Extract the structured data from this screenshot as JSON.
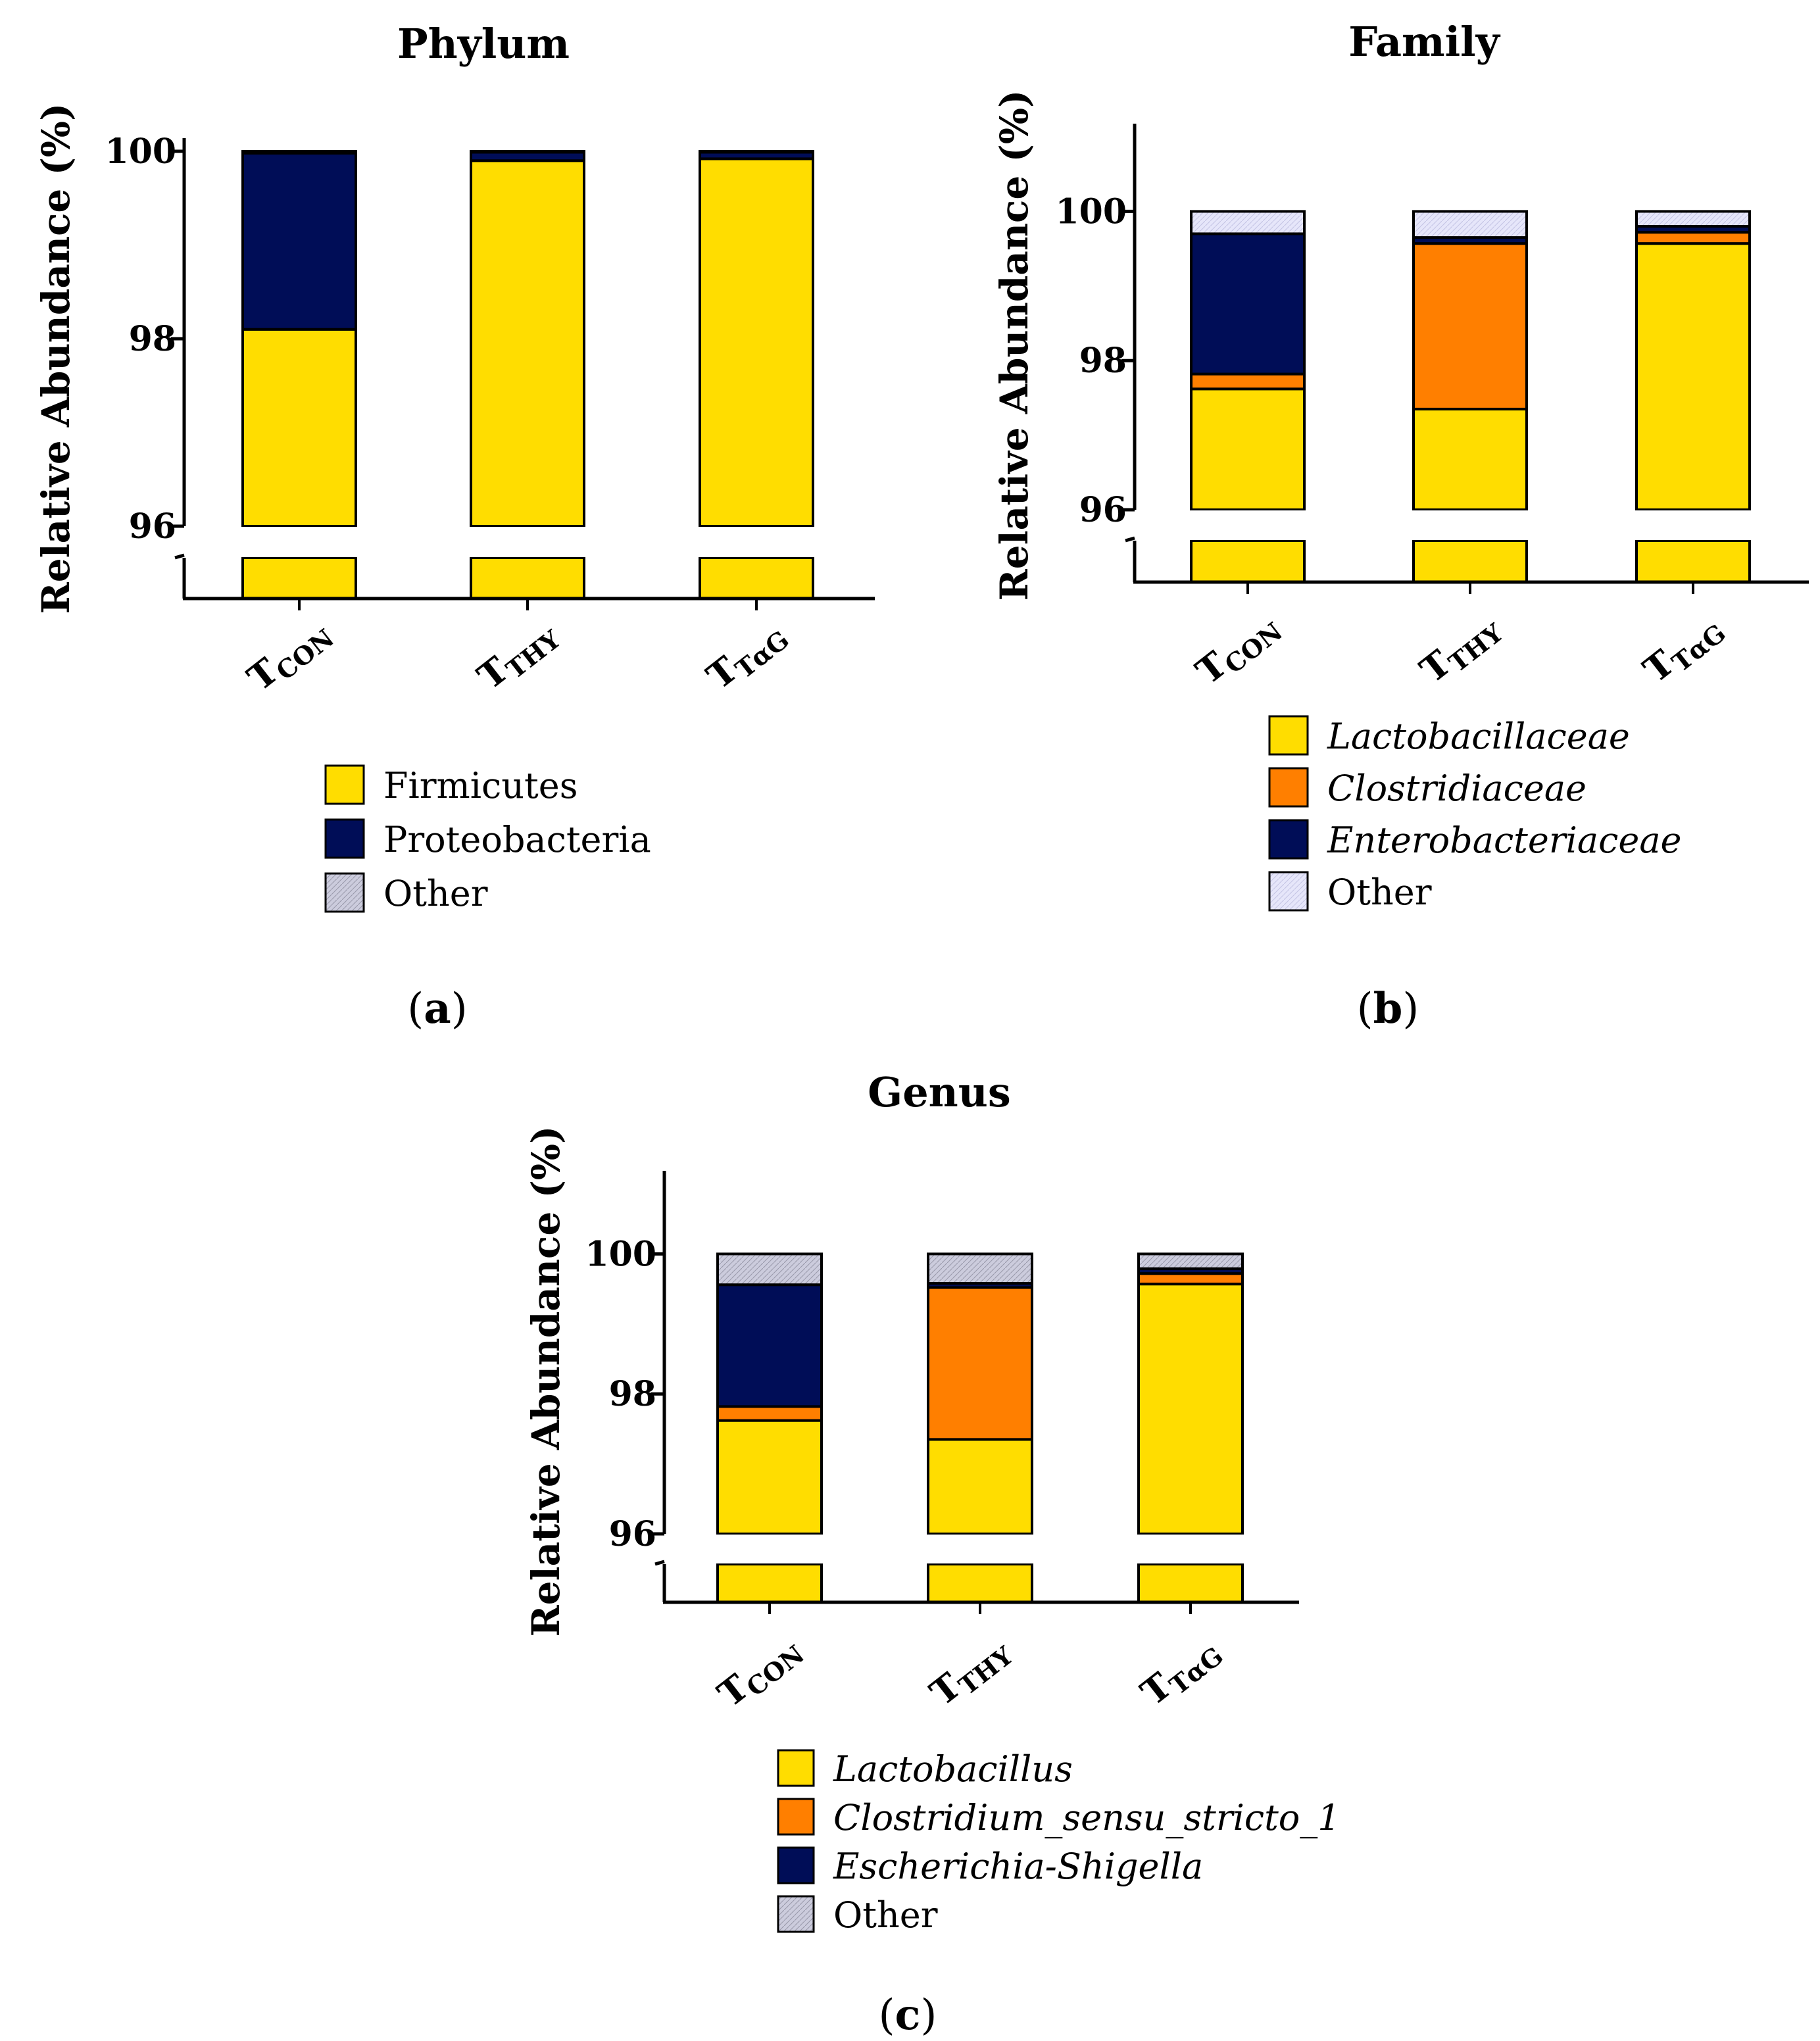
{
  "chart_data": [
    {
      "type": "bar",
      "stacked": true,
      "panel_label": "a",
      "title": "Phylum",
      "ylabel": "Relative Abundance (%)",
      "ylim": [
        96,
        100
      ],
      "yticks": [
        "96",
        "98",
        "100"
      ],
      "axis_break": true,
      "categories": [
        {
          "main": "T",
          "sub": "CON"
        },
        {
          "main": "T",
          "sub": "THY"
        },
        {
          "main": "T",
          "sub": "TαG"
        }
      ],
      "legend_italic": false,
      "series": [
        {
          "name": "Firmicutes",
          "color": "#FFDD00",
          "values": [
            98.1,
            99.9,
            99.92
          ]
        },
        {
          "name": "Proteobacteria",
          "color": "#000D57",
          "values": [
            1.88,
            0.09,
            0.07
          ]
        },
        {
          "name": "Other",
          "color": "#CCCCDD",
          "values": [
            0.02,
            0.01,
            0.01
          ]
        }
      ]
    },
    {
      "type": "bar",
      "stacked": true,
      "panel_label": "b",
      "title": "Family",
      "ylabel": "Relative Abundance (%)",
      "ylim": [
        96,
        101
      ],
      "yticks": [
        "96",
        "98",
        "100"
      ],
      "axis_break": true,
      "categories": [
        {
          "main": "T",
          "sub": "CON"
        },
        {
          "main": "T",
          "sub": "THY"
        },
        {
          "main": "T",
          "sub": "TαG"
        }
      ],
      "legend_italic": true,
      "series": [
        {
          "name": "Lactobacillaceae",
          "color": "#FFDD00",
          "values": [
            97.62,
            97.35,
            99.57
          ]
        },
        {
          "name": "Clostridiaceae",
          "color": "#FF7F00",
          "values": [
            0.2,
            2.22,
            0.15
          ]
        },
        {
          "name": "Enterobacteriaceae",
          "color": "#000D57",
          "values": [
            1.88,
            0.08,
            0.08
          ]
        },
        {
          "name": "Other",
          "color": "#E6E6FA",
          "values": [
            0.3,
            0.35,
            0.2
          ]
        }
      ]
    },
    {
      "type": "bar",
      "stacked": true,
      "panel_label": "c",
      "title": "Genus",
      "ylabel": "Relative Abundance (%)",
      "ylim": [
        96,
        101
      ],
      "yticks": [
        "96",
        "98",
        "100"
      ],
      "axis_break": true,
      "categories": [
        {
          "main": "T",
          "sub": "CON"
        },
        {
          "main": "T",
          "sub": "THY"
        },
        {
          "main": "T",
          "sub": "TαG"
        }
      ],
      "legend_italic": true,
      "series": [
        {
          "name": "Lactobacillus",
          "color": "#FFDD00",
          "values": [
            97.62,
            97.35,
            99.57
          ]
        },
        {
          "name": "Clostridium_sensu_stricto_1",
          "color": "#FF7F00",
          "values": [
            0.2,
            2.17,
            0.15
          ]
        },
        {
          "name": "Escherichia-Shigella",
          "color": "#000D57",
          "values": [
            1.74,
            0.06,
            0.07
          ]
        },
        {
          "name": "Other",
          "color": "#CCCCDD",
          "values": [
            0.44,
            0.42,
            0.21
          ]
        }
      ]
    }
  ]
}
